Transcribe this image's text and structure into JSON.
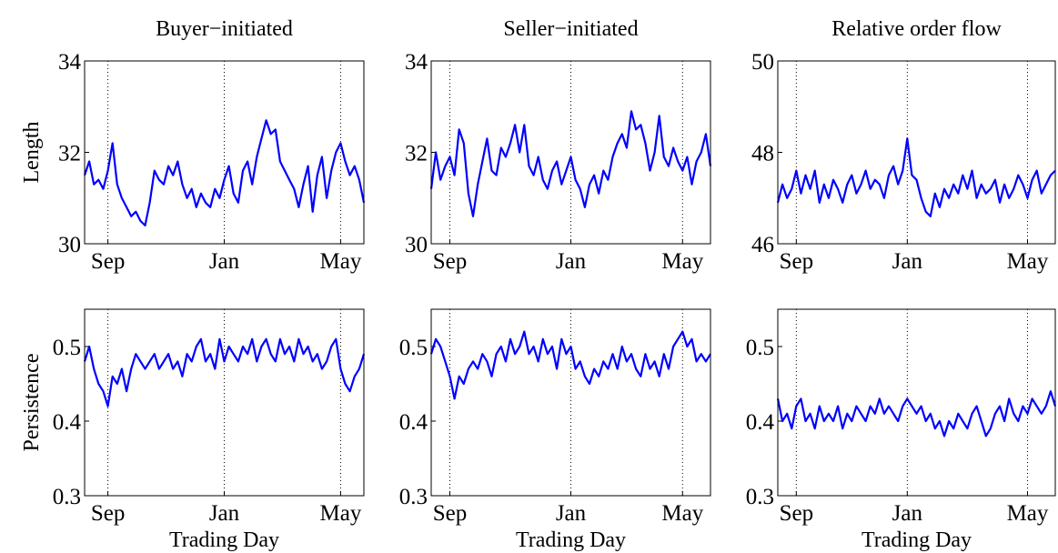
{
  "chart_data": [
    {
      "type": "line",
      "title": "Buyer−initiated",
      "ylabel": "Length",
      "color": "#0000ff",
      "xgrid": true,
      "ylim": [
        30,
        34
      ],
      "yticks": [
        30,
        32,
        34
      ],
      "categories": [
        null,
        null,
        null,
        null,
        null,
        "Sep",
        null,
        null,
        null,
        null,
        null,
        null,
        null,
        null,
        null,
        null,
        null,
        null,
        null,
        null,
        null,
        null,
        null,
        null,
        null,
        null,
        null,
        null,
        null,
        null,
        "Jan",
        null,
        null,
        null,
        null,
        null,
        null,
        null,
        null,
        null,
        null,
        null,
        null,
        null,
        null,
        null,
        null,
        null,
        null,
        null,
        null,
        null,
        null,
        null,
        null,
        "May",
        null,
        null,
        null,
        null,
        null
      ],
      "values": [
        31.5,
        31.8,
        31.3,
        31.4,
        31.2,
        31.6,
        32.2,
        31.3,
        31.0,
        30.8,
        30.6,
        30.7,
        30.5,
        30.4,
        30.9,
        31.6,
        31.4,
        31.3,
        31.7,
        31.5,
        31.8,
        31.3,
        31.0,
        31.2,
        30.8,
        31.1,
        30.9,
        30.8,
        31.2,
        31.0,
        31.4,
        31.7,
        31.1,
        30.9,
        31.6,
        31.8,
        31.3,
        31.9,
        32.3,
        32.7,
        32.4,
        32.5,
        31.8,
        31.6,
        31.4,
        31.2,
        30.8,
        31.3,
        31.7,
        30.7,
        31.5,
        31.9,
        31.0,
        31.6,
        32.0,
        32.2,
        31.8,
        31.5,
        31.7,
        31.4,
        30.9
      ]
    },
    {
      "type": "line",
      "title": "Seller−initiated",
      "color": "#0000ff",
      "xgrid": true,
      "ylim": [
        30,
        34
      ],
      "yticks": [
        30,
        32,
        34
      ],
      "categories": [
        null,
        null,
        null,
        null,
        "Sep",
        null,
        null,
        null,
        null,
        null,
        null,
        null,
        null,
        null,
        null,
        null,
        null,
        null,
        null,
        null,
        null,
        null,
        null,
        null,
        null,
        null,
        null,
        null,
        null,
        null,
        "Jan",
        null,
        null,
        null,
        null,
        null,
        null,
        null,
        null,
        null,
        null,
        null,
        null,
        null,
        null,
        null,
        null,
        null,
        null,
        null,
        null,
        null,
        null,
        null,
        "May",
        null,
        null,
        null,
        null,
        null,
        null
      ],
      "values": [
        31.2,
        32.0,
        31.4,
        31.7,
        31.9,
        31.5,
        32.5,
        32.2,
        31.1,
        30.6,
        31.3,
        31.8,
        32.3,
        31.6,
        31.5,
        32.1,
        31.9,
        32.2,
        32.6,
        32.0,
        32.6,
        31.7,
        31.5,
        31.9,
        31.4,
        31.2,
        31.6,
        31.8,
        31.3,
        31.6,
        31.9,
        31.4,
        31.2,
        30.8,
        31.3,
        31.5,
        31.1,
        31.6,
        31.4,
        31.9,
        32.2,
        32.4,
        32.1,
        32.9,
        32.5,
        32.6,
        32.2,
        31.6,
        32.0,
        32.8,
        31.9,
        31.7,
        32.1,
        31.8,
        31.6,
        31.9,
        31.3,
        31.8,
        32.0,
        32.4,
        31.7
      ]
    },
    {
      "type": "line",
      "title": "Relative order flow",
      "color": "#0000ff",
      "xgrid": true,
      "ylim": [
        46,
        50
      ],
      "yticks": [
        46,
        48,
        50
      ],
      "categories": [
        null,
        null,
        null,
        null,
        "Sep",
        null,
        null,
        null,
        null,
        null,
        null,
        null,
        null,
        null,
        null,
        null,
        null,
        null,
        null,
        null,
        null,
        null,
        null,
        null,
        null,
        null,
        null,
        null,
        "Jan",
        null,
        null,
        null,
        null,
        null,
        null,
        null,
        null,
        null,
        null,
        null,
        null,
        null,
        null,
        null,
        null,
        null,
        null,
        null,
        null,
        null,
        null,
        null,
        null,
        null,
        "May",
        null,
        null,
        null,
        null,
        null,
        null
      ],
      "values": [
        46.9,
        47.3,
        47.0,
        47.2,
        47.6,
        47.1,
        47.5,
        47.2,
        47.6,
        46.9,
        47.3,
        47.0,
        47.4,
        47.2,
        46.9,
        47.3,
        47.5,
        47.1,
        47.3,
        47.6,
        47.2,
        47.4,
        47.3,
        47.0,
        47.5,
        47.7,
        47.3,
        47.6,
        48.3,
        47.5,
        47.4,
        47.0,
        46.7,
        46.6,
        47.1,
        46.8,
        47.2,
        47.0,
        47.3,
        47.1,
        47.5,
        47.2,
        47.6,
        47.0,
        47.3,
        47.1,
        47.2,
        47.4,
        46.9,
        47.3,
        47.0,
        47.2,
        47.5,
        47.3,
        47.0,
        47.4,
        47.6,
        47.1,
        47.3,
        47.5,
        47.6
      ]
    },
    {
      "type": "line",
      "ylabel": "Persistence",
      "xlabel": "Trading Day",
      "color": "#0000ff",
      "xgrid": true,
      "ylim": [
        0.3,
        0.55
      ],
      "yticks": [
        0.3,
        0.4,
        0.5
      ],
      "categories": [
        null,
        null,
        null,
        null,
        null,
        "Sep",
        null,
        null,
        null,
        null,
        null,
        null,
        null,
        null,
        null,
        null,
        null,
        null,
        null,
        null,
        null,
        null,
        null,
        null,
        null,
        null,
        null,
        null,
        null,
        null,
        "Jan",
        null,
        null,
        null,
        null,
        null,
        null,
        null,
        null,
        null,
        null,
        null,
        null,
        null,
        null,
        null,
        null,
        null,
        null,
        null,
        null,
        null,
        null,
        null,
        null,
        "May",
        null,
        null,
        null,
        null,
        null
      ],
      "values": [
        0.48,
        0.5,
        0.47,
        0.45,
        0.44,
        0.42,
        0.46,
        0.45,
        0.47,
        0.44,
        0.47,
        0.49,
        0.48,
        0.47,
        0.48,
        0.49,
        0.47,
        0.48,
        0.49,
        0.47,
        0.48,
        0.46,
        0.49,
        0.48,
        0.5,
        0.51,
        0.48,
        0.49,
        0.47,
        0.51,
        0.48,
        0.5,
        0.49,
        0.48,
        0.5,
        0.49,
        0.51,
        0.48,
        0.5,
        0.51,
        0.49,
        0.48,
        0.51,
        0.49,
        0.5,
        0.48,
        0.51,
        0.49,
        0.5,
        0.48,
        0.49,
        0.47,
        0.48,
        0.5,
        0.51,
        0.47,
        0.45,
        0.44,
        0.46,
        0.47,
        0.49
      ]
    },
    {
      "type": "line",
      "xlabel": "Trading Day",
      "color": "#0000ff",
      "xgrid": true,
      "ylim": [
        0.3,
        0.55
      ],
      "yticks": [
        0.3,
        0.4,
        0.5
      ],
      "categories": [
        null,
        null,
        null,
        null,
        "Sep",
        null,
        null,
        null,
        null,
        null,
        null,
        null,
        null,
        null,
        null,
        null,
        null,
        null,
        null,
        null,
        null,
        null,
        null,
        null,
        null,
        null,
        null,
        null,
        null,
        null,
        "Jan",
        null,
        null,
        null,
        null,
        null,
        null,
        null,
        null,
        null,
        null,
        null,
        null,
        null,
        null,
        null,
        null,
        null,
        null,
        null,
        null,
        null,
        null,
        null,
        "May",
        null,
        null,
        null,
        null,
        null,
        null
      ],
      "values": [
        0.49,
        0.51,
        0.5,
        0.48,
        0.46,
        0.43,
        0.46,
        0.45,
        0.47,
        0.48,
        0.47,
        0.49,
        0.48,
        0.46,
        0.49,
        0.5,
        0.48,
        0.51,
        0.49,
        0.5,
        0.52,
        0.49,
        0.5,
        0.48,
        0.51,
        0.49,
        0.5,
        0.47,
        0.51,
        0.49,
        0.5,
        0.47,
        0.48,
        0.46,
        0.45,
        0.47,
        0.46,
        0.48,
        0.47,
        0.49,
        0.47,
        0.5,
        0.48,
        0.49,
        0.47,
        0.46,
        0.49,
        0.47,
        0.48,
        0.46,
        0.49,
        0.47,
        0.5,
        0.51,
        0.52,
        0.5,
        0.51,
        0.48,
        0.49,
        0.48,
        0.49
      ]
    },
    {
      "type": "line",
      "xlabel": "Trading Day",
      "color": "#0000ff",
      "xgrid": true,
      "ylim": [
        0.3,
        0.55
      ],
      "yticks": [
        0.3,
        0.4,
        0.5
      ],
      "categories": [
        null,
        null,
        null,
        null,
        "Sep",
        null,
        null,
        null,
        null,
        null,
        null,
        null,
        null,
        null,
        null,
        null,
        null,
        null,
        null,
        null,
        null,
        null,
        null,
        null,
        null,
        null,
        null,
        null,
        "Jan",
        null,
        null,
        null,
        null,
        null,
        null,
        null,
        null,
        null,
        null,
        null,
        null,
        null,
        null,
        null,
        null,
        null,
        null,
        null,
        null,
        null,
        null,
        null,
        null,
        null,
        "May",
        null,
        null,
        null,
        null,
        null,
        null
      ],
      "values": [
        0.43,
        0.4,
        0.41,
        0.39,
        0.42,
        0.43,
        0.4,
        0.41,
        0.39,
        0.42,
        0.4,
        0.41,
        0.4,
        0.42,
        0.39,
        0.41,
        0.4,
        0.42,
        0.41,
        0.4,
        0.42,
        0.41,
        0.43,
        0.41,
        0.42,
        0.41,
        0.4,
        0.42,
        0.43,
        0.42,
        0.41,
        0.42,
        0.4,
        0.41,
        0.39,
        0.4,
        0.38,
        0.4,
        0.39,
        0.41,
        0.4,
        0.39,
        0.41,
        0.42,
        0.4,
        0.38,
        0.39,
        0.41,
        0.42,
        0.4,
        0.43,
        0.41,
        0.4,
        0.42,
        0.41,
        0.43,
        0.42,
        0.41,
        0.42,
        0.44,
        0.42
      ]
    }
  ]
}
